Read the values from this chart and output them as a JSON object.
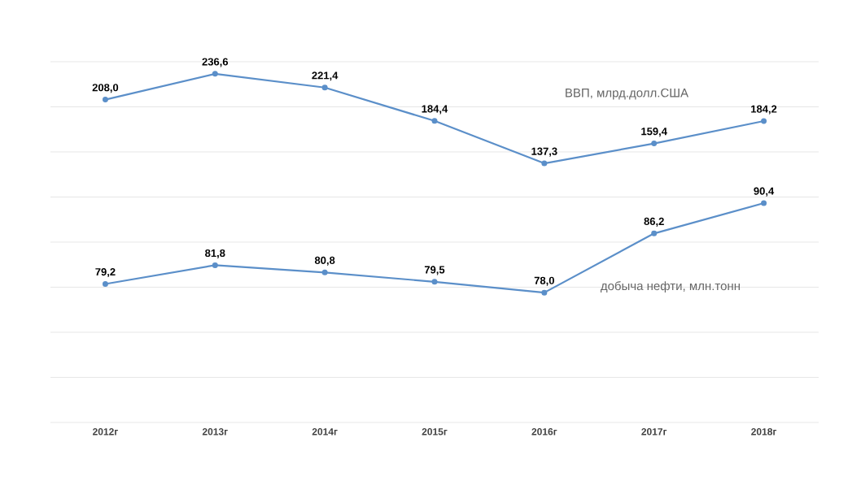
{
  "chart_data": {
    "type": "line",
    "categories": [
      "2012г",
      "2013г",
      "2014г",
      "2015г",
      "2016г",
      "2017г",
      "2018г"
    ],
    "series": [
      {
        "name": "ВВП, млрд.долл.США",
        "color": "#5b8fc9",
        "values": [
          208.0,
          236.6,
          221.4,
          184.4,
          137.3,
          159.4,
          184.2
        ],
        "value_labels": [
          "208,0",
          "236,6",
          "221,4",
          "184,4",
          "137,3",
          "159,4",
          "184,2"
        ]
      },
      {
        "name": "добыча нефти, млн.тонн",
        "color": "#5b8fc9",
        "axis": "y2",
        "values": [
          79.2,
          81.8,
          80.8,
          79.5,
          78.0,
          86.2,
          90.4
        ],
        "value_labels": [
          "79,2",
          "81,8",
          "80,8",
          "79,5",
          "78,0",
          "86,2",
          "90,4"
        ]
      }
    ],
    "ylim": [
      -150,
      250
    ],
    "yticks": [
      {
        "value": -150,
        "label": null
      },
      {
        "value": -100,
        "label": null
      },
      {
        "value": -50,
        "label": null
      },
      {
        "value": 0,
        "label": null
      },
      {
        "value": 50,
        "label": null
      },
      {
        "value": 100,
        "label": null
      },
      {
        "value": 150,
        "label": null
      },
      {
        "value": 200,
        "label": null
      },
      {
        "value": 250,
        "label": null
      }
    ],
    "y2lim": [
      60,
      110
    ],
    "y2ticks": [
      {
        "value": 60,
        "label": null
      },
      {
        "value": 110,
        "label": null
      }
    ],
    "tick_labels": "x",
    "grid": "y",
    "marker": "circle",
    "line_style": "solid"
  }
}
